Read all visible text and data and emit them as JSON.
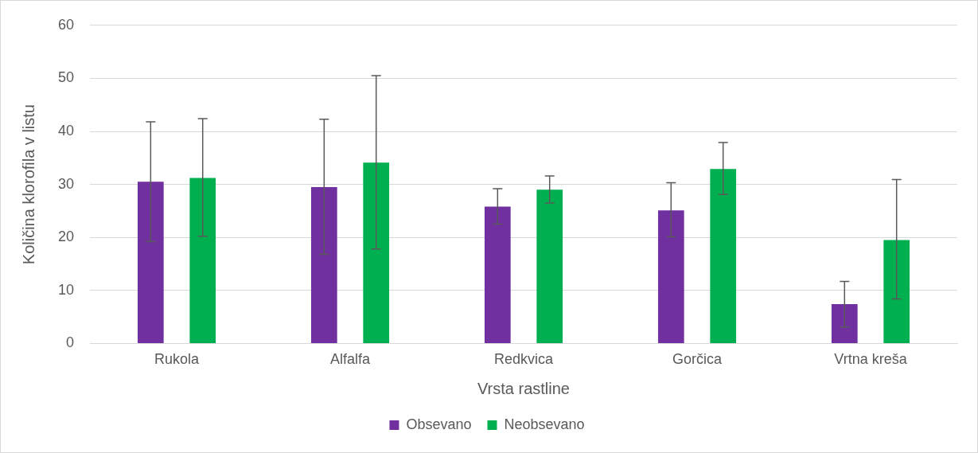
{
  "chart_data": {
    "type": "bar",
    "xlabel": "Vrsta rastline",
    "ylabel": "Količina klorofila v listu",
    "categories": [
      "Rukola",
      "Alfalfa",
      "Redkvica",
      "Gorčica",
      "Vrtna kreša"
    ],
    "series": [
      {
        "name": "Obsevano",
        "color": "#7030a0",
        "values": [
          30.5,
          29.5,
          25.8,
          25.1,
          7.4
        ],
        "errors": [
          [
            19.2,
            41.8
          ],
          [
            16.8,
            42.3
          ],
          [
            22.5,
            29.2
          ],
          [
            20.1,
            30.3
          ],
          [
            3.1,
            11.7
          ]
        ]
      },
      {
        "name": "Neobsevano",
        "color": "#00b050",
        "values": [
          31.2,
          34.1,
          29.0,
          32.9,
          19.5
        ],
        "errors": [
          [
            20.2,
            42.4
          ],
          [
            17.8,
            50.5
          ],
          [
            26.5,
            31.6
          ],
          [
            28.1,
            37.9
          ],
          [
            8.4,
            30.9
          ]
        ]
      }
    ],
    "ylim": [
      0,
      60
    ],
    "yticks": [
      0,
      10,
      20,
      30,
      40,
      50,
      60
    ],
    "grid": "y",
    "legend": "bottom"
  }
}
